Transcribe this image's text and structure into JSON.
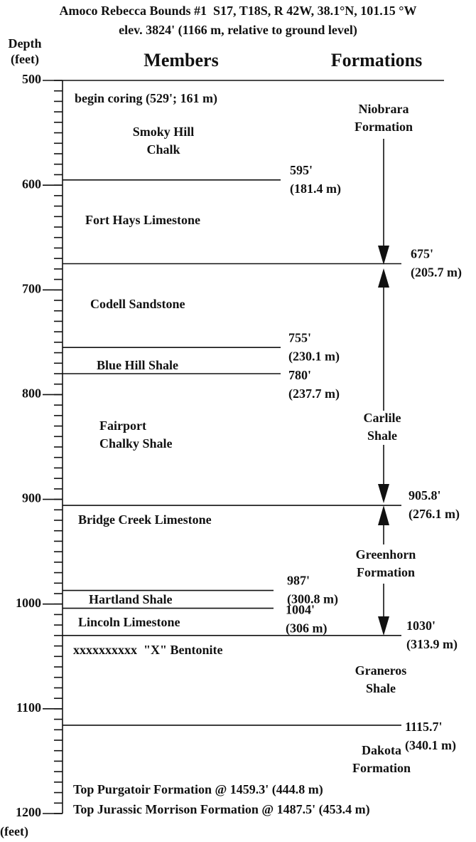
{
  "title": [
    "Amoco Rebecca Bounds #1  S17, T18S, R 42W, 38.1°N, 101.15 °W",
    "elev. 3824' (1166 m, relative to ground level)"
  ],
  "depth_label": [
    "Depth",
    "(feet)"
  ],
  "headers": {
    "members": "Members",
    "formations": "Formations"
  },
  "depth_axis": {
    "range": [
      500,
      1200
    ],
    "ticks": [
      500,
      600,
      700,
      800,
      900,
      1000,
      1100,
      1200
    ],
    "unit": "(feet)"
  },
  "boundaries": [
    {
      "depth": 595,
      "label": "595'",
      "metric": "(181.4 m)"
    },
    {
      "depth": 675,
      "label": "675'",
      "metric": "(205.7 m)"
    },
    {
      "depth": 755,
      "label": "755'",
      "metric": "(230.1 m)"
    },
    {
      "depth": 780,
      "label": "780'",
      "metric": "(237.7 m)"
    },
    {
      "depth": 905.8,
      "label": "905.8'",
      "metric": "(276.1 m)"
    },
    {
      "depth": 987,
      "label": "987'",
      "metric": "(300.8 m)"
    },
    {
      "depth": 1004,
      "label": "1004'",
      "metric": "(306 m)"
    },
    {
      "depth": 1030,
      "label": "1030'",
      "metric": "(313.9 m)"
    },
    {
      "depth": 1115.7,
      "label": "1115.7'",
      "metric": "(340.1 m)"
    }
  ],
  "members": [
    {
      "lines": [
        "begin coring (529'; 161 m)"
      ]
    },
    {
      "lines": [
        "Smoky Hill",
        "Chalk"
      ]
    },
    {
      "lines": [
        "Fort Hays Limestone"
      ]
    },
    {
      "lines": [
        "Codell Sandstone"
      ]
    },
    {
      "lines": [
        "Blue Hill Shale"
      ]
    },
    {
      "lines": [
        "Fairport",
        "Chalky Shale"
      ]
    },
    {
      "lines": [
        "Bridge Creek Limestone"
      ]
    },
    {
      "lines": [
        "Hartland Shale"
      ]
    },
    {
      "lines": [
        "Lincoln Limestone"
      ]
    },
    {
      "lines": [
        "xxxxxxxxxx  \"X\" Bentonite"
      ]
    }
  ],
  "formations": [
    {
      "lines": [
        "Niobrara",
        "Formation"
      ]
    },
    {
      "lines": [
        "Carlile",
        "Shale"
      ]
    },
    {
      "lines": [
        "Greenhorn",
        "Formation"
      ]
    },
    {
      "lines": [
        "Graneros",
        "Shale"
      ]
    },
    {
      "lines": [
        "Dakota",
        "Formation"
      ]
    }
  ],
  "notes": [
    "Top Purgatoir Formation @ 1459.3' (444.8 m)",
    "Top Jurassic Morrison Formation @ 1487.5' (453.4 m)"
  ]
}
